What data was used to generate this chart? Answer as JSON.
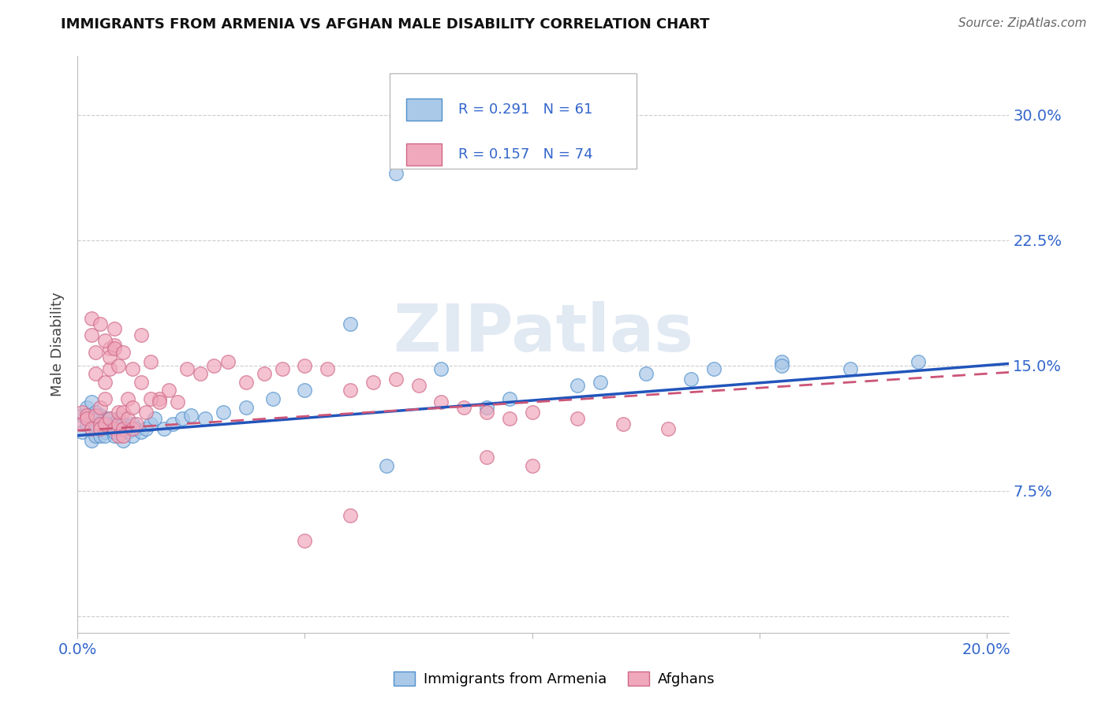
{
  "title": "IMMIGRANTS FROM ARMENIA VS AFGHAN MALE DISABILITY CORRELATION CHART",
  "source": "Source: ZipAtlas.com",
  "ylabel": "Male Disability",
  "xlim": [
    0.0,
    0.205
  ],
  "ylim": [
    -0.01,
    0.335
  ],
  "xticks": [
    0.0,
    0.05,
    0.1,
    0.15,
    0.2
  ],
  "yticks": [
    0.0,
    0.075,
    0.15,
    0.225,
    0.3
  ],
  "legend_label1": "Immigrants from Armenia",
  "legend_label2": "Afghans",
  "blue_color": "#aac8e8",
  "blue_edge": "#5090cc",
  "pink_color": "#f0a8bc",
  "pink_edge": "#d06888",
  "blue_line": "#2255bb",
  "pink_line": "#cc5577",
  "label_color": "#3366cc",
  "r1": 0.291,
  "n1": 61,
  "r2": 0.157,
  "n2": 74,
  "blue_intercept": 0.108,
  "blue_slope": 0.21,
  "pink_intercept": 0.111,
  "pink_slope": 0.17,
  "blue_x": [
    0.001,
    0.001,
    0.002,
    0.002,
    0.003,
    0.003,
    0.003,
    0.003,
    0.004,
    0.004,
    0.004,
    0.005,
    0.005,
    0.005,
    0.005,
    0.006,
    0.006,
    0.006,
    0.007,
    0.007,
    0.007,
    0.008,
    0.008,
    0.008,
    0.009,
    0.009,
    0.01,
    0.01,
    0.01,
    0.011,
    0.012,
    0.012,
    0.013,
    0.014,
    0.015,
    0.016,
    0.017,
    0.019,
    0.021,
    0.023,
    0.025,
    0.028,
    0.032,
    0.037,
    0.043,
    0.05,
    0.06,
    0.07,
    0.08,
    0.095,
    0.11,
    0.125,
    0.14,
    0.155,
    0.17,
    0.185,
    0.068,
    0.09,
    0.115,
    0.135,
    0.155
  ],
  "blue_y": [
    0.12,
    0.11,
    0.125,
    0.115,
    0.105,
    0.118,
    0.128,
    0.112,
    0.108,
    0.115,
    0.122,
    0.108,
    0.116,
    0.112,
    0.12,
    0.11,
    0.118,
    0.108,
    0.115,
    0.112,
    0.118,
    0.108,
    0.115,
    0.11,
    0.112,
    0.118,
    0.105,
    0.115,
    0.112,
    0.11,
    0.115,
    0.108,
    0.112,
    0.11,
    0.112,
    0.115,
    0.118,
    0.112,
    0.115,
    0.118,
    0.12,
    0.118,
    0.122,
    0.125,
    0.13,
    0.135,
    0.175,
    0.265,
    0.148,
    0.13,
    0.138,
    0.145,
    0.148,
    0.152,
    0.148,
    0.152,
    0.09,
    0.125,
    0.14,
    0.142,
    0.15
  ],
  "pink_x": [
    0.001,
    0.001,
    0.002,
    0.002,
    0.003,
    0.003,
    0.003,
    0.004,
    0.004,
    0.004,
    0.005,
    0.005,
    0.005,
    0.006,
    0.006,
    0.006,
    0.007,
    0.007,
    0.007,
    0.008,
    0.008,
    0.008,
    0.009,
    0.009,
    0.009,
    0.01,
    0.01,
    0.01,
    0.011,
    0.011,
    0.012,
    0.012,
    0.013,
    0.014,
    0.015,
    0.016,
    0.018,
    0.02,
    0.022,
    0.024,
    0.027,
    0.03,
    0.033,
    0.037,
    0.041,
    0.045,
    0.05,
    0.055,
    0.06,
    0.065,
    0.07,
    0.075,
    0.08,
    0.085,
    0.09,
    0.095,
    0.1,
    0.11,
    0.12,
    0.13,
    0.005,
    0.006,
    0.007,
    0.008,
    0.009,
    0.01,
    0.012,
    0.014,
    0.016,
    0.018,
    0.05,
    0.06,
    0.09,
    0.1
  ],
  "pink_y": [
    0.115,
    0.122,
    0.12,
    0.118,
    0.168,
    0.178,
    0.112,
    0.145,
    0.158,
    0.12,
    0.115,
    0.125,
    0.112,
    0.13,
    0.14,
    0.115,
    0.148,
    0.16,
    0.118,
    0.162,
    0.172,
    0.112,
    0.115,
    0.122,
    0.108,
    0.112,
    0.122,
    0.108,
    0.13,
    0.118,
    0.125,
    0.112,
    0.115,
    0.168,
    0.122,
    0.152,
    0.13,
    0.135,
    0.128,
    0.148,
    0.145,
    0.15,
    0.152,
    0.14,
    0.145,
    0.148,
    0.15,
    0.148,
    0.135,
    0.14,
    0.142,
    0.138,
    0.128,
    0.125,
    0.122,
    0.118,
    0.122,
    0.118,
    0.115,
    0.112,
    0.175,
    0.165,
    0.155,
    0.16,
    0.15,
    0.158,
    0.148,
    0.14,
    0.13,
    0.128,
    0.045,
    0.06,
    0.095,
    0.09
  ]
}
